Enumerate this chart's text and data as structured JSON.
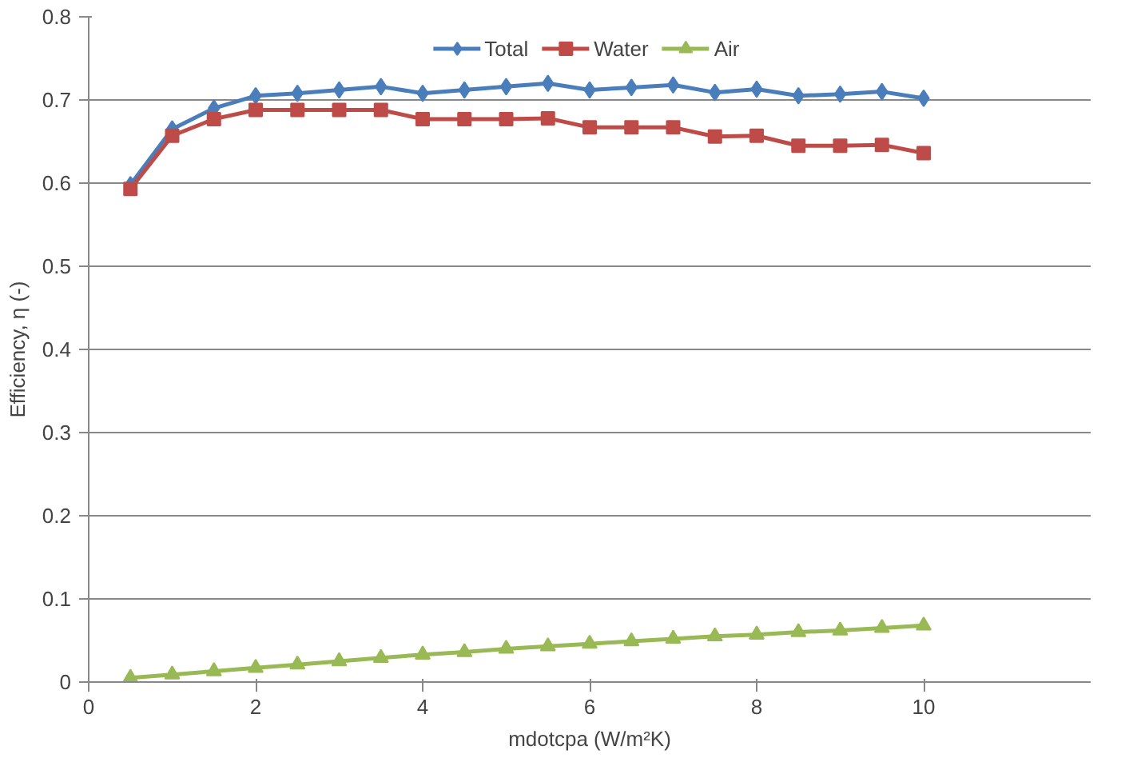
{
  "chart_data": {
    "type": "line",
    "xlabel": "mdotcpa (W/m²K)",
    "ylabel": "Efficiency, η (-)",
    "x": [
      0.5,
      1,
      1.5,
      2,
      2.5,
      3,
      3.5,
      4,
      4.5,
      5,
      5.5,
      6,
      6.5,
      7,
      7.5,
      8,
      8.5,
      9,
      9.5,
      10
    ],
    "series": [
      {
        "name": "Total",
        "color": "#4a7ebb",
        "marker": "diamond",
        "values": [
          0.598,
          0.665,
          0.69,
          0.705,
          0.708,
          0.712,
          0.716,
          0.708,
          0.712,
          0.716,
          0.72,
          0.712,
          0.715,
          0.718,
          0.709,
          0.713,
          0.705,
          0.707,
          0.71,
          0.702
        ]
      },
      {
        "name": "Water",
        "color": "#be4b48",
        "marker": "square",
        "values": [
          0.593,
          0.657,
          0.677,
          0.688,
          0.688,
          0.688,
          0.688,
          0.677,
          0.677,
          0.677,
          0.678,
          0.667,
          0.667,
          0.667,
          0.656,
          0.657,
          0.645,
          0.645,
          0.646,
          0.636
        ]
      },
      {
        "name": "Air",
        "color": "#98b954",
        "marker": "triangle",
        "values": [
          0.005,
          0.009,
          0.013,
          0.017,
          0.021,
          0.025,
          0.029,
          0.033,
          0.036,
          0.04,
          0.043,
          0.046,
          0.049,
          0.052,
          0.055,
          0.057,
          0.06,
          0.062,
          0.065,
          0.068
        ]
      }
    ],
    "xlim": [
      0,
      12
    ],
    "xticks": [
      0,
      2,
      4,
      6,
      8,
      10
    ],
    "ylim": [
      0,
      0.8
    ],
    "yticks": [
      0,
      0.1,
      0.2,
      0.3,
      0.4,
      0.5,
      0.6,
      0.7,
      0.8
    ],
    "grid": "y",
    "legend": "top",
    "line_style": "solid"
  }
}
